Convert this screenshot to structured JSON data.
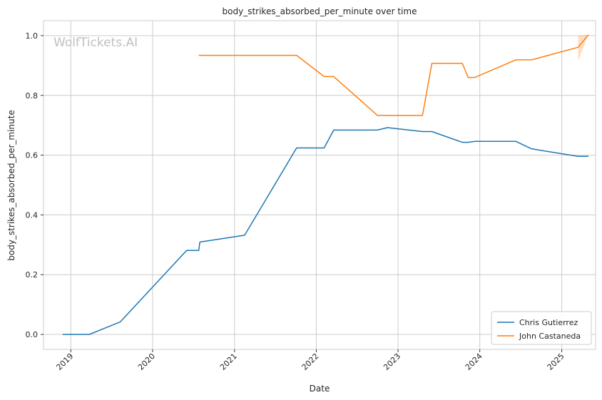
{
  "chart_data": {
    "type": "line",
    "title": "body_strikes_absorbed_per_minute over time",
    "xlabel": "Date",
    "ylabel": "body_strikes_absorbed_per_minute",
    "watermark": "WolfTickets.AI",
    "xlim": [
      "2018-09-01",
      "2025-06-01"
    ],
    "ylim": [
      -0.05,
      1.05
    ],
    "x_ticks": [
      "2019",
      "2020",
      "2021",
      "2022",
      "2023",
      "2024",
      "2025"
    ],
    "y_ticks": [
      0.0,
      0.2,
      0.4,
      0.6,
      0.8,
      1.0
    ],
    "y_tick_labels": [
      "0.0",
      "0.2",
      "0.4",
      "0.6",
      "0.8",
      "1.0"
    ],
    "grid": true,
    "legend_position": "bottom-right",
    "series": [
      {
        "name": "Chris Gutierrez",
        "color": "#1f77b4",
        "points": [
          [
            "2018-11-25",
            0.0
          ],
          [
            "2019-03-25",
            0.0
          ],
          [
            "2019-08-10",
            0.042
          ],
          [
            "2020-06-01",
            0.281
          ],
          [
            "2020-07-25",
            0.281
          ],
          [
            "2020-07-30",
            0.309
          ],
          [
            "2021-02-15",
            0.332
          ],
          [
            "2021-10-05",
            0.624
          ],
          [
            "2022-02-05",
            0.624
          ],
          [
            "2022-03-20",
            0.684
          ],
          [
            "2022-10-01",
            0.684
          ],
          [
            "2022-11-15",
            0.692
          ],
          [
            "2023-04-20",
            0.679
          ],
          [
            "2023-06-01",
            0.679
          ],
          [
            "2023-10-15",
            0.643
          ],
          [
            "2023-11-10",
            0.643
          ],
          [
            "2023-12-10",
            0.646
          ],
          [
            "2024-06-10",
            0.646
          ],
          [
            "2024-08-20",
            0.621
          ],
          [
            "2025-03-15",
            0.596
          ],
          [
            "2025-04-30",
            0.596
          ]
        ]
      },
      {
        "name": "John Castaneda",
        "color": "#ff7f0e",
        "points": [
          [
            "2020-07-25",
            0.934
          ],
          [
            "2021-10-05",
            0.934
          ],
          [
            "2022-02-05",
            0.863
          ],
          [
            "2022-03-20",
            0.863
          ],
          [
            "2022-10-01",
            0.733
          ],
          [
            "2023-04-20",
            0.733
          ],
          [
            "2023-06-01",
            0.907
          ],
          [
            "2023-10-15",
            0.907
          ],
          [
            "2023-11-10",
            0.86
          ],
          [
            "2023-12-10",
            0.86
          ],
          [
            "2024-06-10",
            0.919
          ],
          [
            "2024-08-20",
            0.919
          ],
          [
            "2025-03-15",
            0.961
          ],
          [
            "2025-04-30",
            1.003
          ]
        ],
        "band": [
          [
            "2025-03-15",
            0.915,
            1.0
          ],
          [
            "2025-04-30",
            1.003,
            1.003
          ]
        ]
      }
    ]
  }
}
